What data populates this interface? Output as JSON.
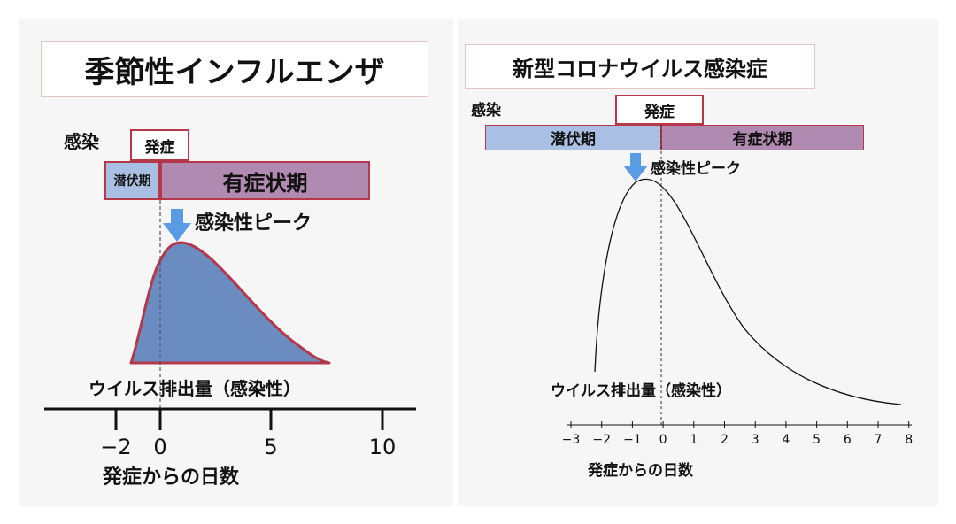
{
  "left": {
    "title": "季節性インフルエンザ",
    "infection_label": "感染",
    "onset_label": "発症",
    "latent_label": "潜伏期",
    "symptomatic_label": "有症状期",
    "peak_label": "感染性ピーク",
    "curve_label": "ウイルス排出量（感染性）",
    "axis_label": "発症からの日数",
    "ticks": [
      "−2",
      "0",
      "5",
      "10"
    ]
  },
  "right": {
    "title": "新型コロナウイルス感染症",
    "infection_label": "感染",
    "onset_label": "発症",
    "latent_label": "潜伏期",
    "symptomatic_label": "有症状期",
    "peak_label": "感染性ピーク",
    "curve_label": "ウイルス排出量（感染性）",
    "axis_label": "発症からの日数",
    "ticks": [
      "−3",
      "−2",
      "−1",
      "0",
      "1",
      "2",
      "3",
      "4",
      "5",
      "6",
      "7",
      "8"
    ]
  },
  "colors": {
    "box_border": "#b5374a",
    "latent_fill": "#a9bfe3",
    "symptomatic_fill": "#b08ab0",
    "curve_fill": "#6a8cc0",
    "curve_stroke": "#b5374a",
    "arrow": "#5a9be6"
  }
}
